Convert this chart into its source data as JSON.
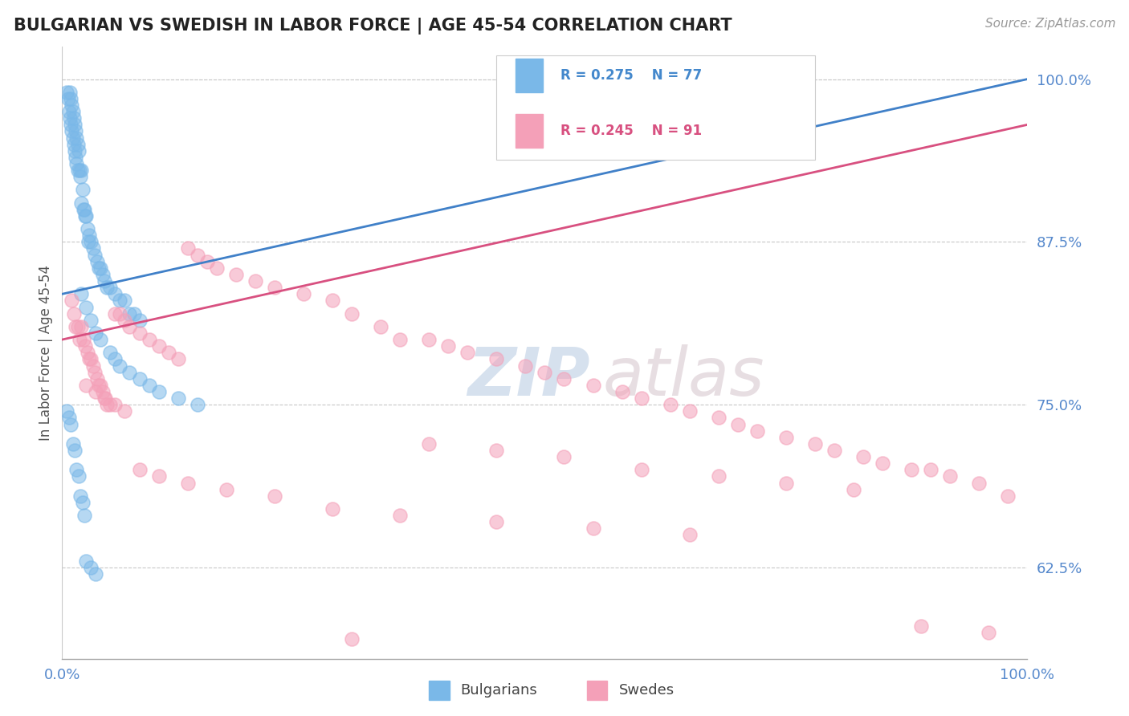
{
  "title": "BULGARIAN VS SWEDISH IN LABOR FORCE | AGE 45-54 CORRELATION CHART",
  "source": "Source: ZipAtlas.com",
  "ylabel": "In Labor Force | Age 45-54",
  "xlim": [
    0.0,
    1.0
  ],
  "ylim": [
    0.555,
    1.025
  ],
  "yticks": [
    0.625,
    0.75,
    0.875,
    1.0
  ],
  "ytick_labels": [
    "62.5%",
    "75.0%",
    "87.5%",
    "100.0%"
  ],
  "xticks": [
    0.0,
    1.0
  ],
  "xtick_labels": [
    "0.0%",
    "100.0%"
  ],
  "bg_color": "#ffffff",
  "grid_color": "#c8c8c8",
  "blue_R": 0.275,
  "blue_N": 77,
  "pink_R": 0.245,
  "pink_N": 91,
  "blue_color": "#7ab8e8",
  "pink_color": "#f4a0b8",
  "blue_line_color": "#4080c8",
  "pink_line_color": "#d85080",
  "legend_blue_label": "Bulgarians",
  "legend_pink_label": "Swedes",
  "blue_line_x0": 0.0,
  "blue_line_y0": 0.835,
  "blue_line_x1": 1.0,
  "blue_line_y1": 1.0,
  "pink_line_x0": 0.0,
  "pink_line_y0": 0.8,
  "pink_line_x1": 1.0,
  "pink_line_y1": 0.965,
  "watermark_zip": "ZIP",
  "watermark_atlas": "atlas",
  "blue_dots_x": [
    0.005,
    0.006,
    0.007,
    0.008,
    0.008,
    0.009,
    0.009,
    0.01,
    0.01,
    0.011,
    0.011,
    0.012,
    0.012,
    0.013,
    0.013,
    0.014,
    0.014,
    0.015,
    0.015,
    0.016,
    0.016,
    0.017,
    0.018,
    0.019,
    0.02,
    0.02,
    0.021,
    0.022,
    0.023,
    0.024,
    0.025,
    0.026,
    0.027,
    0.028,
    0.03,
    0.032,
    0.034,
    0.036,
    0.038,
    0.04,
    0.042,
    0.044,
    0.046,
    0.05,
    0.055,
    0.06,
    0.065,
    0.07,
    0.075,
    0.08,
    0.02,
    0.025,
    0.03,
    0.035,
    0.04,
    0.05,
    0.055,
    0.06,
    0.07,
    0.08,
    0.09,
    0.1,
    0.12,
    0.14,
    0.005,
    0.007,
    0.009,
    0.011,
    0.013,
    0.015,
    0.017,
    0.019,
    0.021,
    0.023,
    0.025,
    0.03,
    0.035
  ],
  "blue_dots_y": [
    0.99,
    0.985,
    0.975,
    0.99,
    0.97,
    0.985,
    0.965,
    0.98,
    0.96,
    0.975,
    0.955,
    0.97,
    0.95,
    0.965,
    0.945,
    0.96,
    0.94,
    0.955,
    0.935,
    0.95,
    0.93,
    0.945,
    0.93,
    0.925,
    0.93,
    0.905,
    0.915,
    0.9,
    0.9,
    0.895,
    0.895,
    0.885,
    0.875,
    0.88,
    0.875,
    0.87,
    0.865,
    0.86,
    0.855,
    0.855,
    0.85,
    0.845,
    0.84,
    0.84,
    0.835,
    0.83,
    0.83,
    0.82,
    0.82,
    0.815,
    0.835,
    0.825,
    0.815,
    0.805,
    0.8,
    0.79,
    0.785,
    0.78,
    0.775,
    0.77,
    0.765,
    0.76,
    0.755,
    0.75,
    0.745,
    0.74,
    0.735,
    0.72,
    0.715,
    0.7,
    0.695,
    0.68,
    0.675,
    0.665,
    0.63,
    0.625,
    0.62
  ],
  "pink_dots_x": [
    0.01,
    0.012,
    0.014,
    0.016,
    0.018,
    0.02,
    0.022,
    0.024,
    0.026,
    0.028,
    0.03,
    0.032,
    0.034,
    0.036,
    0.038,
    0.04,
    0.042,
    0.044,
    0.046,
    0.05,
    0.055,
    0.06,
    0.065,
    0.07,
    0.08,
    0.09,
    0.1,
    0.11,
    0.12,
    0.13,
    0.14,
    0.15,
    0.16,
    0.18,
    0.2,
    0.22,
    0.25,
    0.28,
    0.3,
    0.33,
    0.35,
    0.38,
    0.4,
    0.42,
    0.45,
    0.48,
    0.5,
    0.52,
    0.55,
    0.58,
    0.6,
    0.63,
    0.65,
    0.68,
    0.7,
    0.72,
    0.75,
    0.78,
    0.8,
    0.83,
    0.85,
    0.88,
    0.9,
    0.92,
    0.95,
    0.98,
    0.025,
    0.035,
    0.045,
    0.055,
    0.065,
    0.08,
    0.1,
    0.13,
    0.17,
    0.22,
    0.28,
    0.35,
    0.45,
    0.55,
    0.65,
    0.38,
    0.45,
    0.52,
    0.6,
    0.68,
    0.75,
    0.82,
    0.89,
    0.96,
    0.3
  ],
  "pink_dots_y": [
    0.83,
    0.82,
    0.81,
    0.81,
    0.8,
    0.81,
    0.8,
    0.795,
    0.79,
    0.785,
    0.785,
    0.78,
    0.775,
    0.77,
    0.765,
    0.765,
    0.76,
    0.755,
    0.75,
    0.75,
    0.82,
    0.82,
    0.815,
    0.81,
    0.805,
    0.8,
    0.795,
    0.79,
    0.785,
    0.87,
    0.865,
    0.86,
    0.855,
    0.85,
    0.845,
    0.84,
    0.835,
    0.83,
    0.82,
    0.81,
    0.8,
    0.8,
    0.795,
    0.79,
    0.785,
    0.78,
    0.775,
    0.77,
    0.765,
    0.76,
    0.755,
    0.75,
    0.745,
    0.74,
    0.735,
    0.73,
    0.725,
    0.72,
    0.715,
    0.71,
    0.705,
    0.7,
    0.7,
    0.695,
    0.69,
    0.68,
    0.765,
    0.76,
    0.755,
    0.75,
    0.745,
    0.7,
    0.695,
    0.69,
    0.685,
    0.68,
    0.67,
    0.665,
    0.66,
    0.655,
    0.65,
    0.72,
    0.715,
    0.71,
    0.7,
    0.695,
    0.69,
    0.685,
    0.58,
    0.575,
    0.57
  ]
}
